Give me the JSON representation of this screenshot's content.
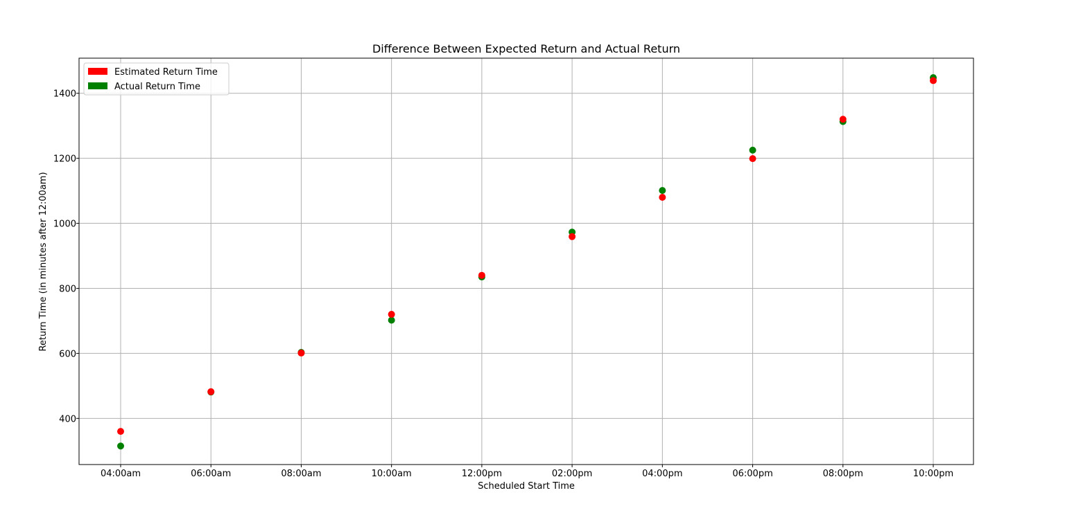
{
  "chart_data": {
    "type": "scatter",
    "title": "Difference Between Expected Return and Actual Return",
    "xlabel": "Scheduled Start Time",
    "ylabel": "Return Time (in minutes after 12:00am)",
    "categories": [
      "04:00am",
      "06:00am",
      "08:00am",
      "10:00am",
      "12:00pm",
      "02:00pm",
      "04:00pm",
      "06:00pm",
      "08:00pm",
      "10:00pm"
    ],
    "ylim": [
      258,
      1508
    ],
    "yticks": [
      400,
      600,
      800,
      1000,
      1200,
      1400
    ],
    "grid": true,
    "legend_position": "upper-left",
    "series": [
      {
        "name": "Estimated Return Time",
        "color": "#ff0000",
        "values": [
          360,
          482,
          601,
          720,
          840,
          959,
          1080,
          1199,
          1320,
          1439
        ]
      },
      {
        "name": "Actual Return Time",
        "color": "#008000",
        "values": [
          315,
          481,
          603,
          702,
          835,
          973,
          1101,
          1225,
          1313,
          1448
        ]
      }
    ]
  }
}
